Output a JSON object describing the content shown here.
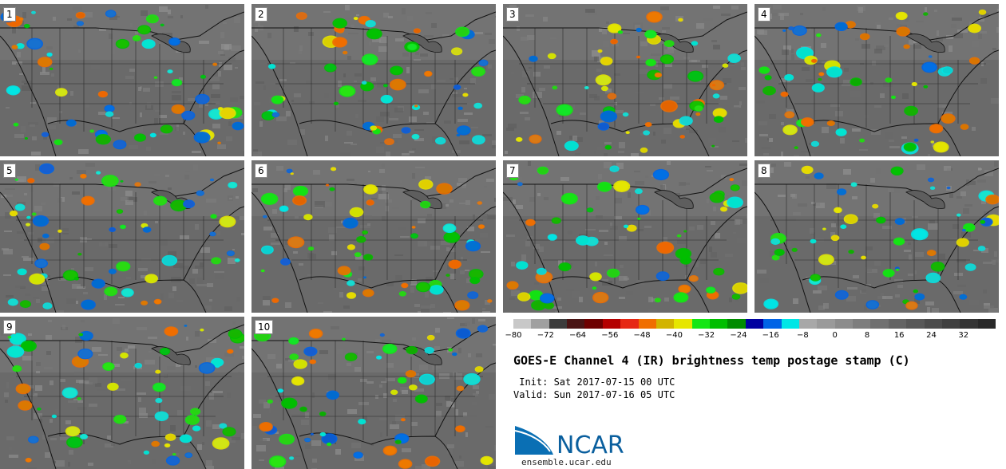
{
  "panels": [
    {
      "label": "1"
    },
    {
      "label": "2"
    },
    {
      "label": "3"
    },
    {
      "label": "4"
    },
    {
      "label": "5"
    },
    {
      "label": "6"
    },
    {
      "label": "7"
    },
    {
      "label": "8"
    },
    {
      "label": "9"
    },
    {
      "label": "10"
    }
  ],
  "colorbar": {
    "colors": [
      "#c8c8c8",
      "#a0a0a0",
      "#3c3c3c",
      "#4a1414",
      "#6e0000",
      "#b40000",
      "#e62814",
      "#f06e00",
      "#d2b400",
      "#e6e600",
      "#14e614",
      "#00be00",
      "#008c00",
      "#0000a0",
      "#0064e6",
      "#00e6e6",
      "#a8a8a8",
      "#9a9a9a",
      "#8c8c8c",
      "#7e7e7e",
      "#707070",
      "#646464",
      "#585858",
      "#4c4c4c",
      "#404040",
      "#343434",
      "#282828"
    ],
    "tick_labels": [
      "−80",
      "−72",
      "−64",
      "−56",
      "−48",
      "−40",
      "−32",
      "−24",
      "−16",
      "−8",
      "0",
      "8",
      "16",
      "24",
      "32"
    ]
  },
  "title": "GOES-E Channel 4 (IR) brightness temp postage stamp (C)",
  "init_line": " Init: Sat 2017-07-15 00 UTC",
  "valid_line": "Valid: Sun 2017-07-16 05 UTC",
  "logo_text": "NCAR",
  "logo_url": "ensemble.ucar.edu"
}
